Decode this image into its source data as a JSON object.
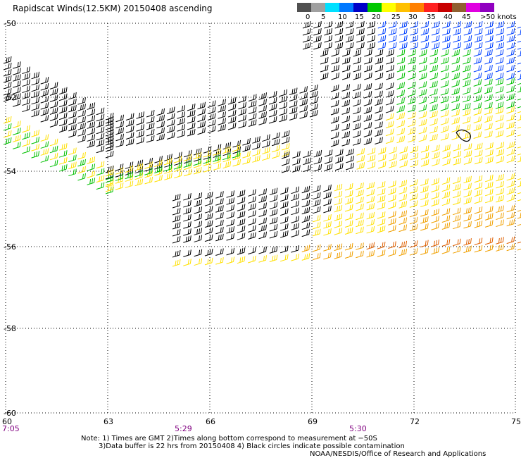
{
  "title": "Rapidscat Winds(12.5KM) 20150408 ascending",
  "legend": {
    "labels": [
      "0",
      "5",
      "10",
      "15",
      "20",
      "25",
      "30",
      "35",
      "40",
      "45",
      ">50 knots"
    ],
    "colors": [
      "#505050",
      "#a0a0a0",
      "#00e0ff",
      "#0078ff",
      "#0000c8",
      "#00c800",
      "#ffff00",
      "#ffc000",
      "#ff8000",
      "#ff2020",
      "#c80000",
      "#906030",
      "#e000e0",
      "#9000c0"
    ]
  },
  "axes": {
    "x_ticks": [
      "60",
      "63",
      "66",
      "69",
      "72",
      "75"
    ],
    "y_ticks": [
      "-50",
      "-52",
      "-54",
      "-56",
      "-58",
      "-60"
    ],
    "time_labels": [
      "7:05",
      "5:29",
      "5:30"
    ]
  },
  "notes": {
    "line1": "Note: 1) Times are GMT 2)Times along bottom correspond to measurement at −50S",
    "line2": "3)Data buffer is 22 hrs from 20150408 4) Black circles indicate possible contamination",
    "credit": "NOAA/NESDIS/Office of Research and Applications"
  },
  "colors": {
    "black": "#000000",
    "green": "#00c000",
    "yellow": "#ffe000",
    "orange": "#f0a000",
    "red_orange": "#e06000",
    "blue": "#0040ff",
    "time": "#800080"
  }
}
